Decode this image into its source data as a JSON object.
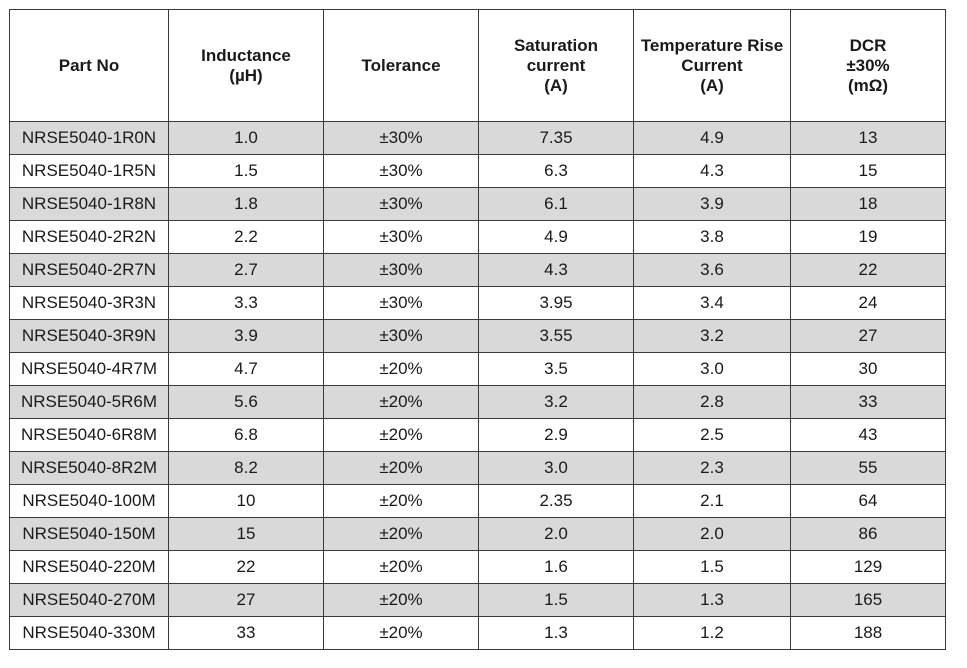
{
  "headers": [
    {
      "lines": [
        "Part No"
      ]
    },
    {
      "lines": [
        "Inductance",
        "(µH)"
      ]
    },
    {
      "lines": [
        "Tolerance"
      ]
    },
    {
      "lines": [
        "Saturation",
        "current",
        "(A)"
      ]
    },
    {
      "lines": [
        "Temperature Rise",
        "Current",
        "(A)"
      ]
    },
    {
      "lines": [
        "DCR",
        "±30%",
        "(mΩ)"
      ]
    }
  ],
  "rows": [
    [
      "NRSE5040-1R0N",
      "1.0",
      "±30%",
      "7.35",
      "4.9",
      "13"
    ],
    [
      "NRSE5040-1R5N",
      "1.5",
      "±30%",
      "6.3",
      "4.3",
      "15"
    ],
    [
      "NRSE5040-1R8N",
      "1.8",
      "±30%",
      "6.1",
      "3.9",
      "18"
    ],
    [
      "NRSE5040-2R2N",
      "2.2",
      "±30%",
      "4.9",
      "3.8",
      "19"
    ],
    [
      "NRSE5040-2R7N",
      "2.7",
      "±30%",
      "4.3",
      "3.6",
      "22"
    ],
    [
      "NRSE5040-3R3N",
      "3.3",
      "±30%",
      "3.95",
      "3.4",
      "24"
    ],
    [
      "NRSE5040-3R9N",
      "3.9",
      "±30%",
      "3.55",
      "3.2",
      "27"
    ],
    [
      "NRSE5040-4R7M",
      "4.7",
      "±20%",
      "3.5",
      "3.0",
      "30"
    ],
    [
      "NRSE5040-5R6M",
      "5.6",
      "±20%",
      "3.2",
      "2.8",
      "33"
    ],
    [
      "NRSE5040-6R8M",
      "6.8",
      "±20%",
      "2.9",
      "2.5",
      "43"
    ],
    [
      "NRSE5040-8R2M",
      "8.2",
      "±20%",
      "3.0",
      "2.3",
      "55"
    ],
    [
      "NRSE5040-100M",
      "10",
      "±20%",
      "2.35",
      "2.1",
      "64"
    ],
    [
      "NRSE5040-150M",
      "15",
      "±20%",
      "2.0",
      "2.0",
      "86"
    ],
    [
      "NRSE5040-220M",
      "22",
      "±20%",
      "1.6",
      "1.5",
      "129"
    ],
    [
      "NRSE5040-270M",
      "27",
      "±20%",
      "1.5",
      "1.3",
      "165"
    ],
    [
      "NRSE5040-330M",
      "33",
      "±20%",
      "1.3",
      "1.2",
      "188"
    ]
  ],
  "colors": {
    "shaded_row": "#d9d9d9",
    "plain_row": "#ffffff",
    "border": "#3a3a3a",
    "text": "#1a1a1a"
  }
}
